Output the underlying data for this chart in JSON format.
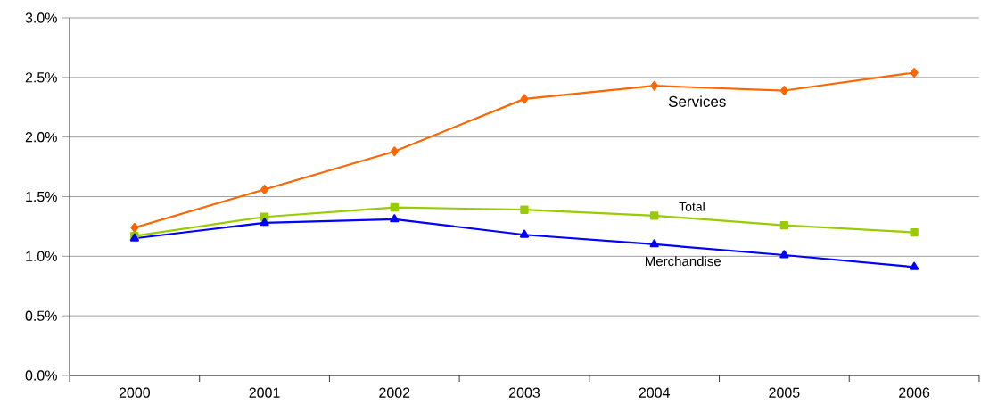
{
  "chart_data": {
    "type": "line",
    "categories": [
      "2000",
      "2001",
      "2002",
      "2003",
      "2004",
      "2005",
      "2006"
    ],
    "series": [
      {
        "name": "Services",
        "color": "#ff6600",
        "marker": "diamond",
        "values": [
          1.24,
          1.56,
          1.88,
          2.32,
          2.43,
          2.39,
          2.54
        ]
      },
      {
        "name": "Total",
        "color": "#99cc00",
        "marker": "square",
        "values": [
          1.17,
          1.33,
          1.41,
          1.39,
          1.34,
          1.26,
          1.2
        ]
      },
      {
        "name": "Merchandise",
        "color": "#0000ff",
        "marker": "triangle",
        "values": [
          1.15,
          1.28,
          1.31,
          1.18,
          1.1,
          1.01,
          0.91
        ]
      }
    ],
    "ylim": [
      0,
      3
    ],
    "yticks": [
      {
        "value": 0,
        "label": "0.0%"
      },
      {
        "value": 0.5,
        "label": "0.5%"
      },
      {
        "value": 1,
        "label": "1.0%"
      },
      {
        "value": 1.5,
        "label": "1.5%"
      },
      {
        "value": 2,
        "label": "2.0%"
      },
      {
        "value": 2.5,
        "label": "2.5%"
      },
      {
        "value": 3,
        "label": "3.0%"
      }
    ],
    "grid": "y",
    "line_style": "solid"
  }
}
